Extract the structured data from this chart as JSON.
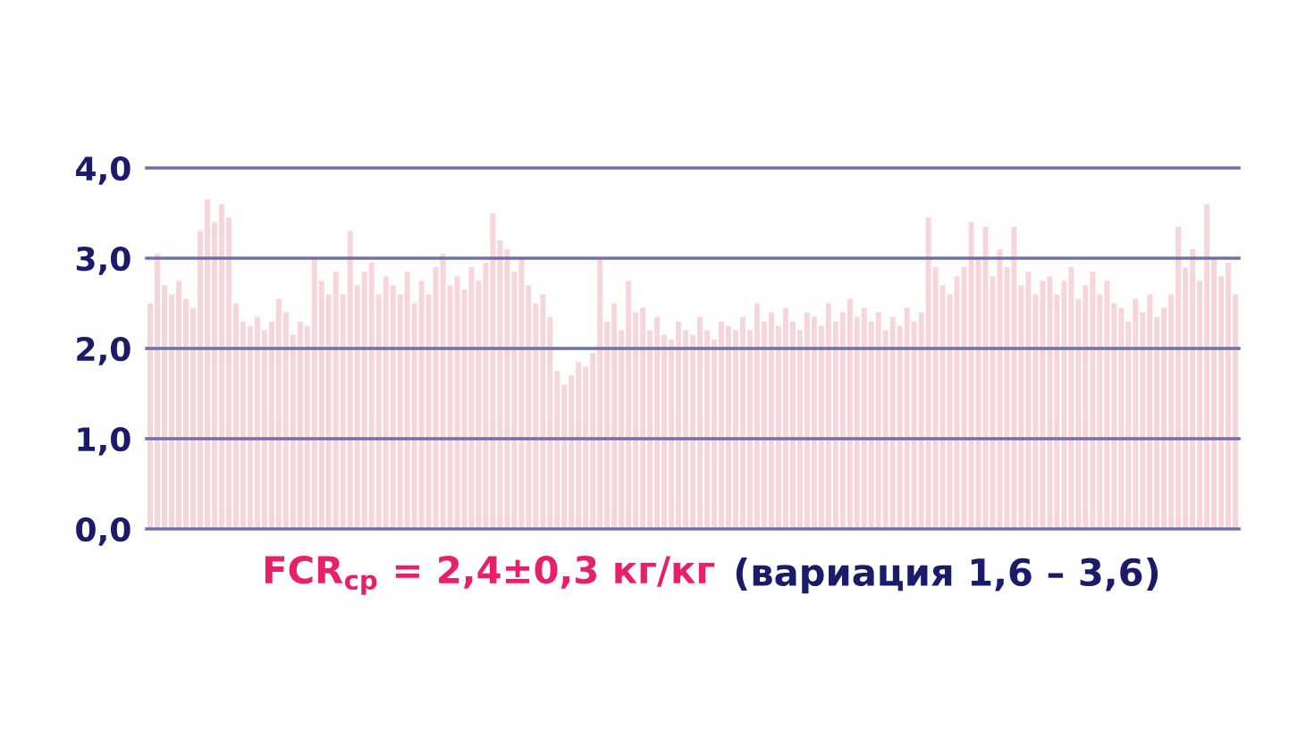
{
  "chart_data": {
    "type": "bar",
    "categories": [
      null,
      null,
      null,
      null,
      null,
      null,
      null,
      null,
      null,
      null,
      null,
      null,
      null,
      null,
      null,
      null,
      null,
      null,
      null,
      null,
      null,
      null,
      null,
      null,
      null,
      null,
      null,
      null,
      null,
      null,
      null,
      null,
      null,
      null,
      null,
      null,
      null,
      null,
      null,
      null,
      null,
      null,
      null,
      null,
      null,
      null,
      null,
      null,
      null,
      null,
      null,
      null,
      null,
      null,
      null,
      null,
      null,
      null,
      null,
      null,
      null,
      null,
      null,
      null,
      null,
      null,
      null,
      null,
      null,
      null,
      null,
      null,
      null,
      null,
      null,
      null,
      null,
      null,
      null,
      null,
      null,
      null,
      null,
      null,
      null,
      null,
      null,
      null,
      null,
      null,
      null,
      null,
      null,
      null,
      null,
      null,
      null,
      null,
      null,
      null,
      null,
      null,
      null,
      null,
      null,
      null,
      null,
      null,
      null,
      null,
      null,
      null,
      null,
      null,
      null,
      null,
      null,
      null,
      null,
      null,
      null,
      null,
      null,
      null,
      null,
      null,
      null,
      null,
      null,
      null,
      null,
      null,
      null,
      null,
      null,
      null,
      null,
      null,
      null,
      null,
      null,
      null,
      null,
      null,
      null,
      null,
      null,
      null,
      null,
      null,
      null,
      null,
      null
    ],
    "values": [
      2.5,
      3.05,
      2.7,
      2.6,
      2.75,
      2.55,
      2.45,
      3.3,
      3.65,
      3.4,
      3.6,
      3.45,
      2.5,
      2.3,
      2.25,
      2.35,
      2.2,
      2.3,
      2.55,
      2.4,
      2.15,
      2.3,
      2.25,
      3.0,
      2.75,
      2.6,
      2.85,
      2.6,
      3.3,
      2.7,
      2.85,
      2.95,
      2.6,
      2.8,
      2.7,
      2.6,
      2.85,
      2.5,
      2.75,
      2.6,
      2.9,
      3.05,
      2.7,
      2.8,
      2.65,
      2.9,
      2.75,
      2.95,
      3.5,
      3.2,
      3.1,
      2.85,
      3.0,
      2.7,
      2.5,
      2.6,
      2.35,
      1.75,
      1.6,
      1.7,
      1.85,
      1.8,
      1.95,
      3.0,
      2.3,
      2.5,
      2.2,
      2.75,
      2.4,
      2.45,
      2.2,
      2.35,
      2.15,
      2.1,
      2.3,
      2.2,
      2.15,
      2.35,
      2.2,
      2.1,
      2.3,
      2.25,
      2.2,
      2.35,
      2.2,
      2.5,
      2.3,
      2.4,
      2.25,
      2.45,
      2.3,
      2.2,
      2.4,
      2.35,
      2.25,
      2.5,
      2.3,
      2.4,
      2.55,
      2.35,
      2.45,
      2.3,
      2.4,
      2.2,
      2.35,
      2.25,
      2.45,
      2.3,
      2.4,
      3.45,
      2.9,
      2.7,
      2.6,
      2.8,
      2.9,
      3.4,
      3.0,
      3.35,
      2.8,
      3.1,
      2.9,
      3.35,
      2.7,
      2.85,
      2.6,
      2.75,
      2.8,
      2.6,
      2.75,
      2.9,
      2.55,
      2.7,
      2.85,
      2.6,
      2.75,
      2.5,
      2.45,
      2.3,
      2.55,
      2.4,
      2.6,
      2.35,
      2.45,
      2.6,
      3.35,
      2.9,
      3.1,
      2.75,
      3.6,
      3.0,
      2.8,
      2.95,
      2.6
    ],
    "color": "#f7d6d9",
    "ylim": [
      0,
      4
    ],
    "yticks": [
      {
        "value": 0,
        "label": "0,0"
      },
      {
        "value": 1,
        "label": "1,0"
      },
      {
        "value": 2,
        "label": "2,0"
      },
      {
        "value": 3,
        "label": "3,0"
      },
      {
        "value": 4,
        "label": "4,0"
      }
    ],
    "grid": "y",
    "tick_labels": "y",
    "annotations": [
      "FCR$_{ср}$ = 2,4±0,3 кг/кг",
      "(вариация 1,6 – 3,6)"
    ]
  }
}
